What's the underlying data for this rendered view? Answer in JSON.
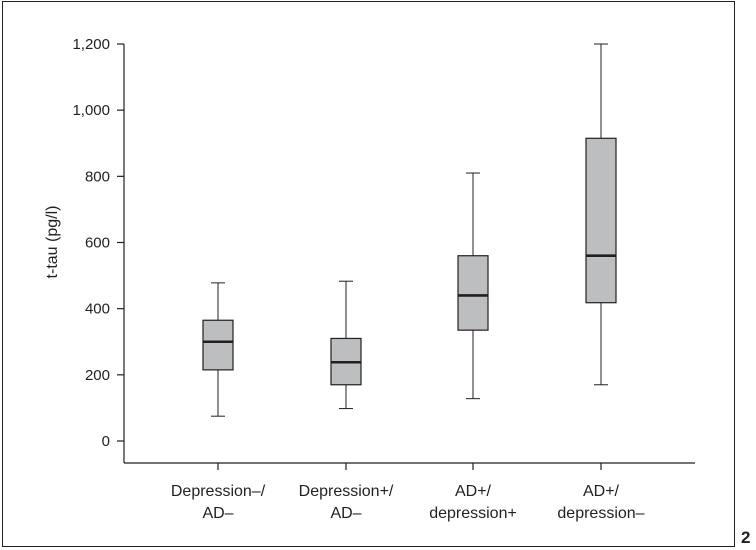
{
  "figure": {
    "number": "2"
  },
  "chart_data": {
    "type": "boxplot",
    "title": "",
    "xlabel": "",
    "ylabel": "t-tau (pg/l)",
    "ylim": [
      0,
      1200
    ],
    "yticks": [
      0,
      200,
      400,
      600,
      800,
      1000,
      1200
    ],
    "ytick_labels": [
      "0",
      "200",
      "400",
      "600",
      "800",
      "1,000",
      "1,200"
    ],
    "categories": [
      [
        "Depression–/",
        "AD–"
      ],
      [
        "Depression+/",
        "AD–"
      ],
      [
        "AD+/",
        "depression+"
      ],
      [
        "AD+/",
        "depression–"
      ]
    ],
    "boxes": [
      {
        "min": 75,
        "q1": 215,
        "median": 300,
        "q3": 365,
        "max": 478
      },
      {
        "min": 98,
        "q1": 170,
        "median": 238,
        "q3": 310,
        "max": 483
      },
      {
        "min": 128,
        "q1": 335,
        "median": 440,
        "q3": 560,
        "max": 810
      },
      {
        "min": 170,
        "q1": 418,
        "median": 560,
        "q3": 915,
        "max": 1200
      }
    ],
    "grid": false,
    "colors": {
      "box_fill": "#bcbec0",
      "line": "#231f20"
    }
  }
}
